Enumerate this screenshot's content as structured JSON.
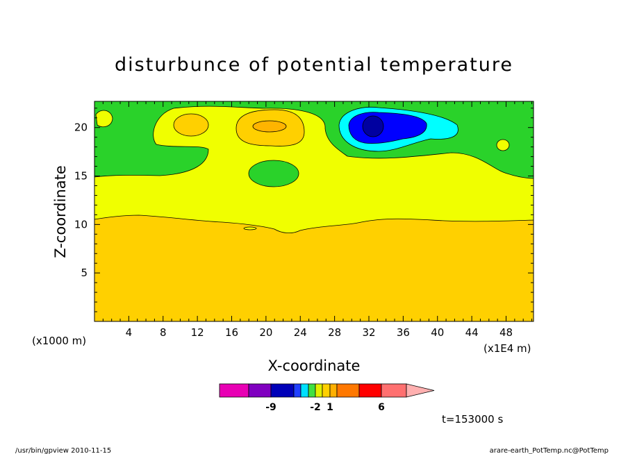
{
  "chart_data": {
    "type": "contour",
    "title": "disturbunce of potential temperature",
    "xlabel": "X-coordinate",
    "ylabel": "Z-coordinate",
    "x_unit_label": "(x1000 m)",
    "x_scale_label": "(x1E4 m)",
    "xlim": [
      0,
      51.2
    ],
    "ylim": [
      0,
      22.7
    ],
    "x_ticks": [
      "4",
      "8",
      "12",
      "16",
      "20",
      "24",
      "28",
      "32",
      "36",
      "40",
      "44",
      "48"
    ],
    "y_ticks": [
      "5",
      "10",
      "15",
      "20"
    ],
    "colorbar": {
      "colors": [
        "#e800b4",
        "#8000c0",
        "#0000b8",
        "#2040ff",
        "#00e0ff",
        "#40e040",
        "#e0f000",
        "#ffd000",
        "#ffb000",
        "#ff7800",
        "#ff0000",
        "#ff7070",
        "#ffb0b0"
      ],
      "labels": [
        "-9",
        "-2",
        "1",
        "6"
      ]
    },
    "regions": [
      {
        "level": "0 to 1",
        "area": "layer z 15-22.7 (background)"
      },
      {
        "level": "1 to 2",
        "area": "band z 10.5-15 plus upper warm lobes"
      },
      {
        "level": "2 to 3",
        "area": "lower layer z 0-10.5"
      },
      {
        "level": "2 to 3",
        "area": "warm cell near x 11, z 20.5"
      },
      {
        "level": "3 to 4",
        "area": "warm cell near x 20, z 20.3"
      },
      {
        "level": "-2 to 0",
        "area": "cold cell near x 33, z 20.5"
      },
      {
        "level": "below -2",
        "area": "cold core near x 32, z 20.3"
      }
    ]
  },
  "time_label": "t=153000 s",
  "footer": {
    "left": "/usr/bin/gpview   2010-11-15",
    "right": "arare-earth_PotTemp.nc@PotTemp"
  },
  "colors": {
    "green": "#2ad22a",
    "yellow": "#f0ff00",
    "gold": "#ffd000",
    "orange": "#ffb400",
    "cyan": "#00ffff",
    "blue": "#0000ff",
    "navy": "#0000a0"
  }
}
